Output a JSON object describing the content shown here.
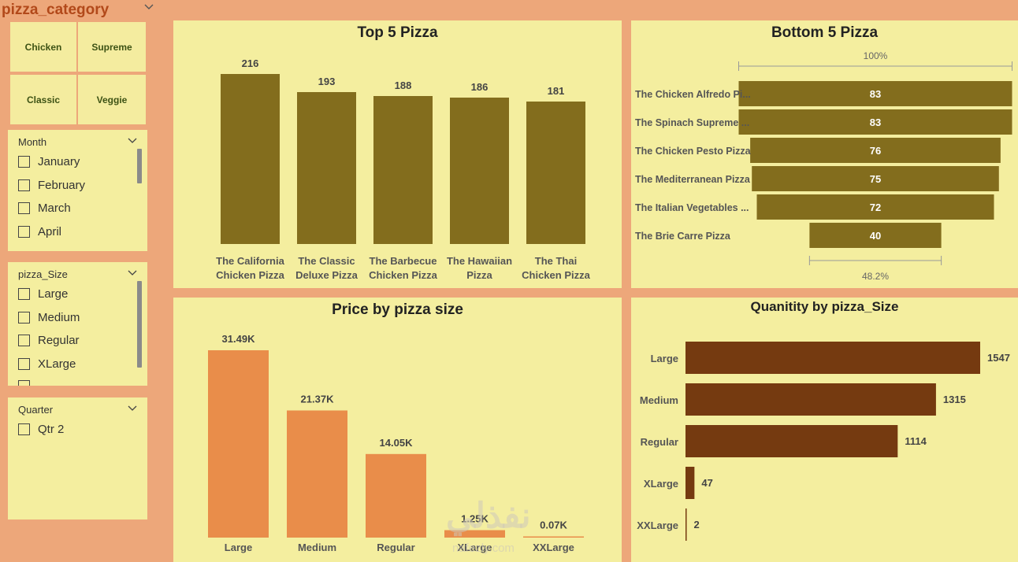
{
  "category_slicer": {
    "title": "pizza_category",
    "tiles": [
      "Chicken",
      "Supreme",
      "Classic",
      "Veggie"
    ]
  },
  "month_filter": {
    "title": "Month",
    "items": [
      "January",
      "February",
      "March",
      "April"
    ]
  },
  "size_filter": {
    "title": "pizza_Size",
    "items": [
      "Large",
      "Medium",
      "Regular",
      "XLarge"
    ]
  },
  "quarter_filter": {
    "title": "Quarter",
    "items": [
      "Qtr 2"
    ]
  },
  "colors": {
    "page_bg": "#eda77a",
    "card_bg": "#f4ee9f",
    "olive": "#836d1d",
    "orange": "#e98d4a",
    "brown": "#753a10",
    "slicer_text": "#b2491a"
  },
  "chart_data": [
    {
      "type": "bar",
      "title": "Top 5 Pizza",
      "categories": [
        [
          "The California",
          "Chicken Pizza"
        ],
        [
          "The Classic",
          "Deluxe Pizza"
        ],
        [
          "The Barbecue",
          "Chicken Pizza"
        ],
        [
          "The Hawaiian",
          "Pizza"
        ],
        [
          "The Thai",
          "Chicken Pizza"
        ]
      ],
      "values": [
        216,
        193,
        188,
        186,
        181
      ],
      "data_labels": [
        "216",
        "193",
        "188",
        "186",
        "181"
      ],
      "ylim": [
        0,
        216
      ]
    },
    {
      "type": "bar",
      "title": "Bottom 5 Pizza",
      "categories": [
        "The Chicken Alfredo Pi...",
        "The Spinach Supreme ...",
        "The Chicken Pesto Pizza",
        "The Mediterranean Pizza",
        "The Italian Vegetables ...",
        "The Brie Carre Pizza"
      ],
      "values": [
        83,
        83,
        76,
        75,
        72,
        40
      ],
      "data_labels": [
        "83",
        "83",
        "76",
        "75",
        "72",
        "40"
      ],
      "top_percent_label": "100%",
      "bottom_percent_label": "48.2%",
      "bottom_percent": 48.2
    },
    {
      "type": "bar",
      "title": "Price by pizza size",
      "categories": [
        "Large",
        "Medium",
        "Regular",
        "XLarge",
        "XXLarge"
      ],
      "values": [
        31490,
        21370,
        14050,
        1250,
        70
      ],
      "data_labels": [
        "31.49K",
        "21.37K",
        "14.05K",
        "1.25K",
        "0.07K"
      ]
    },
    {
      "type": "bar",
      "title": "Quanitity by pizza_Size",
      "categories": [
        "Large",
        "Medium",
        "Regular",
        "XLarge",
        "XXLarge"
      ],
      "values": [
        1547,
        1315,
        1114,
        47,
        2
      ],
      "data_labels": [
        "1547",
        "1315",
        "1114",
        "47",
        "2"
      ]
    }
  ],
  "watermark": {
    "text": "نفذلي",
    "url": "nafezly.com"
  }
}
